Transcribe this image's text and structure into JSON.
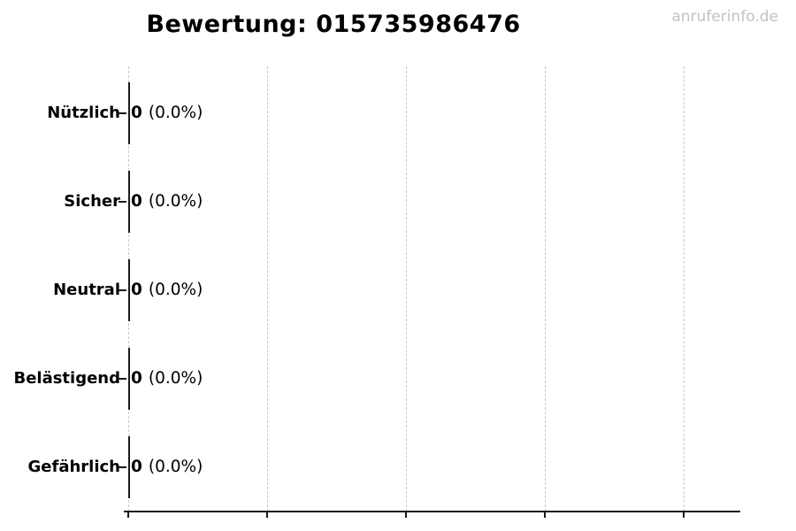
{
  "title": "Bewertung: 015735986476",
  "watermark": "anruferinfo.de",
  "chart_data": {
    "type": "bar",
    "orientation": "horizontal",
    "title": "Bewertung: 015735986476",
    "categories": [
      "Nützlich",
      "Sicher",
      "Neutral",
      "Belästigend",
      "Gefährlich"
    ],
    "values": [
      0,
      0,
      0,
      0,
      0
    ],
    "percent_labels": [
      "(0.0%)",
      "(0.0%)",
      "(0.0%)",
      "(0.0%)",
      "(0.0%)"
    ],
    "xlim_estimate": [
      0,
      4.4
    ],
    "x_tick_labels_visible": false,
    "grid": "vertical-dashed",
    "gridline_count": 5,
    "legend": "none",
    "colors": {
      "bar_edge": "#1a1a1a",
      "text": "#000000",
      "grid": "#c9c9c9",
      "watermark": "#c2c2c2",
      "background": "#ffffff"
    }
  }
}
